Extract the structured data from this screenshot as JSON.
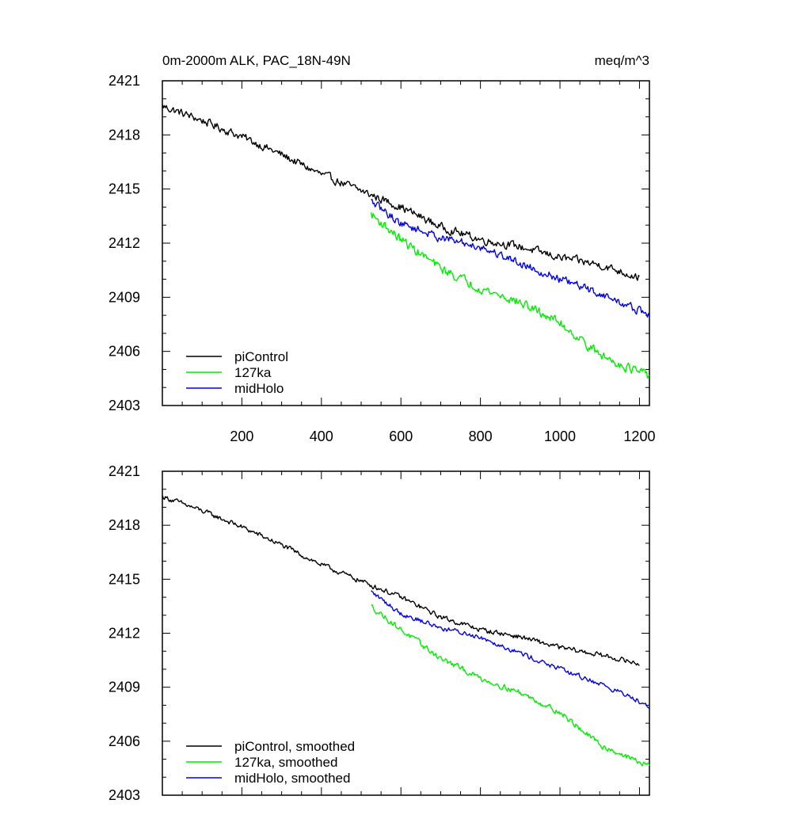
{
  "chart_data": [
    {
      "type": "line",
      "title_left": "0m-2000m ALK, PAC_18N-49N",
      "title_right": "meq/m^3",
      "xlim": [
        0,
        1225
      ],
      "ylim": [
        2403,
        2421
      ],
      "xticks": [
        200,
        400,
        600,
        800,
        1000,
        1200
      ],
      "xtick_labels": [
        "200",
        "400",
        "600",
        "800",
        "1000",
        "1200"
      ],
      "yticks": [
        2403,
        2406,
        2409,
        2412,
        2415,
        2418,
        2421
      ],
      "ytick_labels": [
        "2403",
        "2406",
        "2409",
        "2412",
        "2415",
        "2418",
        "2421"
      ],
      "show_xtick_labels": true,
      "legend_position": "bottom-left",
      "series": [
        {
          "name": "piControl",
          "color": "#000000",
          "x": [
            0,
            100,
            200,
            300,
            400,
            500,
            600,
            700,
            800,
            900,
            1000,
            1100,
            1200
          ],
          "values": [
            2419.6,
            2418.8,
            2417.9,
            2416.9,
            2415.8,
            2414.9,
            2414.0,
            2412.9,
            2412.2,
            2411.8,
            2411.2,
            2410.8,
            2410.1
          ],
          "noise": 0.35
        },
        {
          "name": "127ka",
          "color": "#00ee00",
          "x": [
            525,
            600,
            700,
            800,
            900,
            1000,
            1100,
            1225
          ],
          "values": [
            2413.6,
            2412.2,
            2410.6,
            2409.5,
            2408.7,
            2407.6,
            2405.8,
            2404.6
          ],
          "noise": 0.4
        },
        {
          "name": "midHolo",
          "color": "#0000ee",
          "x": [
            525,
            600,
            700,
            800,
            900,
            1000,
            1100,
            1225
          ],
          "values": [
            2414.3,
            2413.1,
            2412.3,
            2411.8,
            2410.9,
            2410.0,
            2409.2,
            2408.0
          ],
          "noise": 0.35
        }
      ]
    },
    {
      "type": "line",
      "title_left": "",
      "title_right": "",
      "xlim": [
        0,
        1225
      ],
      "ylim": [
        2403,
        2421
      ],
      "xticks": [
        200,
        400,
        600,
        800,
        1000,
        1200
      ],
      "xtick_labels": [],
      "yticks": [
        2403,
        2406,
        2409,
        2412,
        2415,
        2418,
        2421
      ],
      "ytick_labels": [
        "2403",
        "2406",
        "2409",
        "2412",
        "2415",
        "2418",
        "2421"
      ],
      "show_xtick_labels": false,
      "legend_position": "bottom-left",
      "series": [
        {
          "name": "piControl, smoothed",
          "color": "#000000",
          "x": [
            0,
            100,
            200,
            300,
            400,
            500,
            600,
            700,
            800,
            900,
            1000,
            1100,
            1200
          ],
          "values": [
            2419.6,
            2418.8,
            2417.9,
            2416.9,
            2415.8,
            2414.9,
            2414.0,
            2412.9,
            2412.2,
            2411.8,
            2411.2,
            2410.8,
            2410.3
          ],
          "noise": 0.22
        },
        {
          "name": "127ka, smoothed",
          "color": "#00ee00",
          "x": [
            525,
            600,
            700,
            800,
            900,
            1000,
            1100,
            1225
          ],
          "values": [
            2413.5,
            2412.2,
            2410.6,
            2409.5,
            2408.7,
            2407.6,
            2405.8,
            2404.6
          ],
          "noise": 0.25
        },
        {
          "name": "midHolo, smoothed",
          "color": "#0000ee",
          "x": [
            525,
            600,
            700,
            800,
            900,
            1000,
            1100,
            1225
          ],
          "values": [
            2414.3,
            2413.1,
            2412.3,
            2411.8,
            2410.9,
            2410.0,
            2409.2,
            2408.0
          ],
          "noise": 0.22
        }
      ]
    }
  ]
}
